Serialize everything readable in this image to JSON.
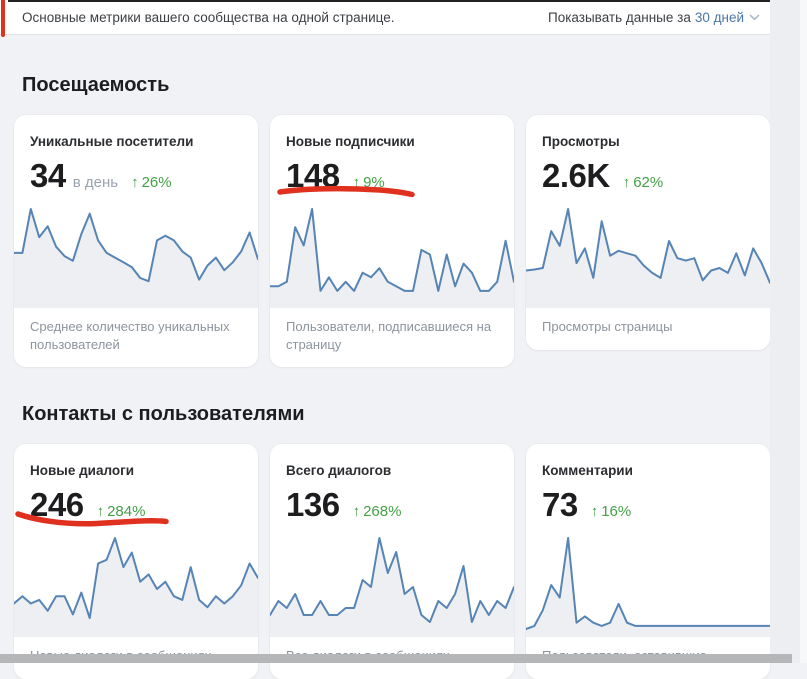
{
  "header": {
    "subtitle": "Основные метрики вашего сообщества на одной странице.",
    "period_label": "Показывать данные за",
    "period_value": "30 дней"
  },
  "icons": {
    "trend_up": "↑",
    "chevron_down": "chevron-down"
  },
  "sections": [
    {
      "title": "Посещаемость",
      "cards": [
        {
          "title": "Уникальные посетители",
          "value": "34",
          "value_suffix": "в день",
          "trend_percent": "26%",
          "description": "Среднее количество уникальных пользователей"
        },
        {
          "title": "Новые подписчики",
          "value": "148",
          "value_suffix": "",
          "trend_percent": "9%",
          "description": "Пользователи, подписавшиеся на страницу",
          "annotated": true
        },
        {
          "title": "Просмотры",
          "value": "2.6K",
          "value_suffix": "",
          "trend_percent": "62%",
          "description": "Просмотры страницы"
        }
      ]
    },
    {
      "title": "Контакты с пользователями",
      "cards": [
        {
          "title": "Новые диалоги",
          "value": "246",
          "value_suffix": "",
          "trend_percent": "284%",
          "description": "Новые диалоги в сообщениях",
          "annotated": true
        },
        {
          "title": "Всего диалогов",
          "value": "136",
          "value_suffix": "",
          "trend_percent": "268%",
          "description": "Все диалоги в сообщениях"
        },
        {
          "title": "Комментарии",
          "value": "73",
          "value_suffix": "",
          "trend_percent": "16%",
          "description": "Пользователи, оставившие"
        }
      ]
    }
  ],
  "chart_data": [
    {
      "type": "line",
      "title": "Уникальные посетители (в день)",
      "trend": "+26%",
      "legend": "hidden",
      "axes": "hidden",
      "values": [
        30,
        30,
        58,
        40,
        47,
        34,
        28,
        25,
        42,
        55,
        38,
        30,
        27,
        24,
        21,
        14,
        12,
        38,
        41,
        38,
        31,
        27,
        13,
        22,
        27,
        19,
        24,
        31,
        43,
        26
      ]
    },
    {
      "type": "line",
      "title": "Новые подписчики",
      "trend": "+9%",
      "legend": "hidden",
      "axes": "hidden",
      "values": [
        3,
        3,
        4,
        16,
        12,
        20,
        2,
        5,
        2,
        4,
        2,
        6,
        5,
        7,
        4,
        3,
        2,
        2,
        11,
        10,
        2,
        10,
        3,
        8,
        6,
        2,
        2,
        4,
        13,
        4
      ]
    },
    {
      "type": "line",
      "title": "Просмотры",
      "trend": "+62%",
      "legend": "hidden",
      "axes": "hidden",
      "values": [
        60,
        62,
        65,
        140,
        110,
        185,
        75,
        105,
        45,
        160,
        90,
        100,
        95,
        90,
        70,
        55,
        45,
        120,
        85,
        80,
        85,
        40,
        60,
        65,
        55,
        95,
        50,
        105,
        75,
        35
      ]
    },
    {
      "type": "line",
      "title": "Новые диалоги",
      "trend": "+284%",
      "legend": "hidden",
      "axes": "hidden",
      "values": [
        7,
        9,
        7,
        8,
        5,
        9,
        9,
        4,
        10,
        3,
        18,
        19,
        25,
        17,
        21,
        13,
        15,
        11,
        13,
        9,
        8,
        17,
        8,
        6,
        9,
        7,
        9,
        12,
        18,
        14
      ]
    },
    {
      "type": "line",
      "title": "Всего диалогов",
      "trend": "+268%",
      "legend": "hidden",
      "axes": "hidden",
      "values": [
        2,
        4,
        3,
        5,
        2,
        2,
        4,
        2,
        2,
        3,
        3,
        7,
        6,
        13,
        8,
        11,
        5,
        6,
        2,
        1,
        4,
        3,
        5,
        9,
        1,
        4,
        2,
        4,
        3,
        6
      ]
    },
    {
      "type": "line",
      "title": "Комментарии",
      "trend": "+16%",
      "legend": "hidden",
      "axes": "hidden",
      "values": [
        0,
        1,
        6,
        14,
        10,
        29,
        2,
        4,
        2,
        1,
        2,
        8,
        2,
        1,
        1,
        1,
        1,
        1,
        1,
        1,
        1,
        1,
        1,
        1,
        1,
        1,
        1,
        1,
        1,
        1
      ]
    }
  ],
  "colors": {
    "chart_line": "#5684b5",
    "chart_fill": "#edeff2",
    "trend_green": "#44a147",
    "link_blue": "#4a76a8",
    "annotation_red": "#e0301e",
    "page_background": "#f1f2f5",
    "card_background": "#ffffff"
  },
  "annotations": {
    "items": [
      {
        "type": "vertical-line",
        "location": "top-left edge"
      },
      {
        "type": "hand-drawn-underline",
        "target": "148 ↑9% (Новые подписчики)"
      },
      {
        "type": "hand-drawn-underline",
        "target": "246 ↑284% (Новые диалоги)"
      }
    ]
  }
}
